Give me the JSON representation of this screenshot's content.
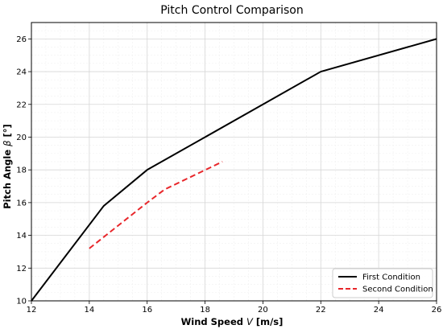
{
  "chart_data": {
    "type": "line",
    "title": "Pitch Control Comparison",
    "xlabel": {
      "prefix": "Wind Speed ",
      "symbol": "V",
      "suffix": " [m/s]"
    },
    "ylabel": {
      "prefix": "Pitch Angle ",
      "symbol": "β",
      "suffix": " [°]"
    },
    "xlim": [
      12,
      26
    ],
    "ylim": [
      10,
      27
    ],
    "xticks": [
      12,
      14,
      16,
      18,
      20,
      22,
      24,
      26
    ],
    "yticks": [
      10,
      12,
      14,
      16,
      18,
      20,
      22,
      24,
      26
    ],
    "grid": true,
    "minor_grid": true,
    "legend_position": "bottom-right",
    "series": [
      {
        "name": "First Condition",
        "color": "#000000",
        "style": "solid",
        "x": [
          12,
          14.5,
          16,
          22,
          26
        ],
        "y": [
          10,
          15.8,
          18,
          24,
          26
        ]
      },
      {
        "name": "Second Condition",
        "color": "#e8262a",
        "style": "dashed",
        "x": [
          14,
          15,
          16,
          16.6,
          18.6
        ],
        "y": [
          13.2,
          14.6,
          16,
          16.8,
          18.5
        ]
      }
    ]
  }
}
